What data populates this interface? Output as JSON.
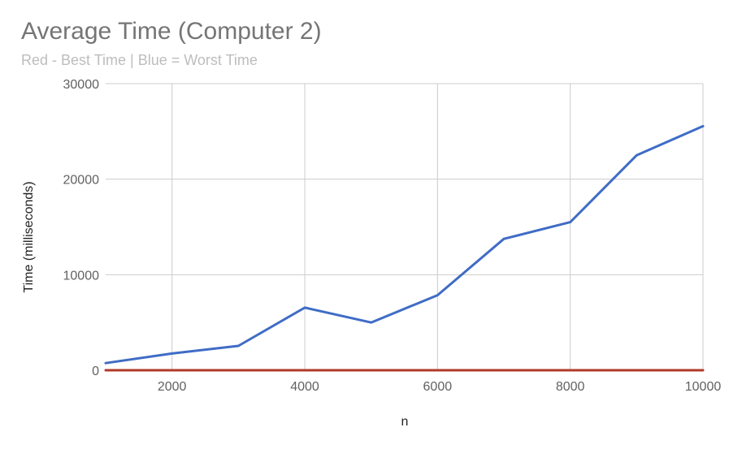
{
  "chart_data": {
    "type": "line",
    "title": "Average Time (Computer 2)",
    "subtitle": "Red - Best Time | Blue = Worst Time",
    "xlabel": "n",
    "ylabel": "Time (milliseconds)",
    "xlim": [
      1000,
      10000
    ],
    "ylim": [
      0,
      30000
    ],
    "x_ticks": [
      2000,
      4000,
      6000,
      8000,
      10000
    ],
    "y_ticks": [
      0,
      10000,
      20000,
      30000
    ],
    "grid": true,
    "x": [
      1000,
      2000,
      3000,
      4000,
      5000,
      6000,
      7000,
      8000,
      9000,
      10000
    ],
    "series": [
      {
        "color": "#3f6cc6",
        "values": [
          750,
          1750,
          2550,
          6550,
          5000,
          7850,
          13750,
          15500,
          22500,
          25550
        ]
      },
      {
        "color": "#b23a2a",
        "values": [
          0,
          0,
          0,
          0,
          0,
          0,
          0,
          0,
          0,
          0
        ]
      }
    ]
  }
}
